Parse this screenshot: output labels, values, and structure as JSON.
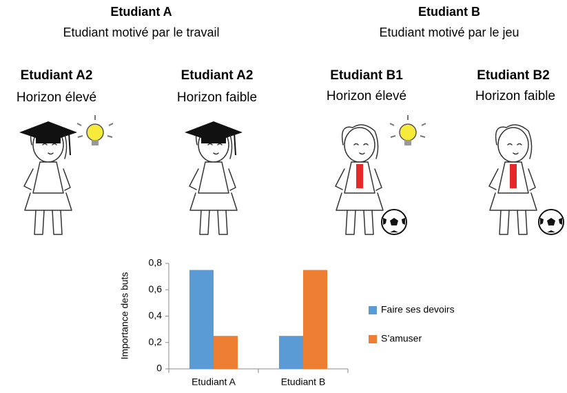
{
  "groups": [
    {
      "title": "Etudiant A",
      "subtitle": "Etudiant motivé par le travail"
    },
    {
      "title": "Etudiant B",
      "subtitle": "Etudiant motivé par le jeu"
    }
  ],
  "students": [
    {
      "name": "Etudiant A2",
      "horizon": "Horizon élevé"
    },
    {
      "name": "Etudiant A2",
      "horizon": "Horizon faible"
    },
    {
      "name": "Etudiant B1",
      "horizon": "Horizon élevé"
    },
    {
      "name": "Etudiant B2",
      "horizon": "Horizon faible"
    }
  ],
  "chart_data": {
    "type": "bar",
    "ylabel": "Importance des buts",
    "categories": [
      "Etudiant A",
      "Etudiant B"
    ],
    "series": [
      {
        "name": "Faire ses devoirs",
        "color": "#5b9bd5",
        "values": [
          0.75,
          0.25
        ]
      },
      {
        "name": "S’amuser",
        "color": "#ed7d31",
        "values": [
          0.25,
          0.75
        ]
      }
    ],
    "ylim": [
      0,
      0.8
    ],
    "yticks": [
      0,
      {
        "value": 0.2,
        "label": "0,2"
      },
      {
        "value": 0.4,
        "label": "0,4"
      },
      {
        "value": 0.6,
        "label": "0,6"
      },
      {
        "value": 0.8,
        "label": "0,8"
      }
    ],
    "legend": "right"
  }
}
